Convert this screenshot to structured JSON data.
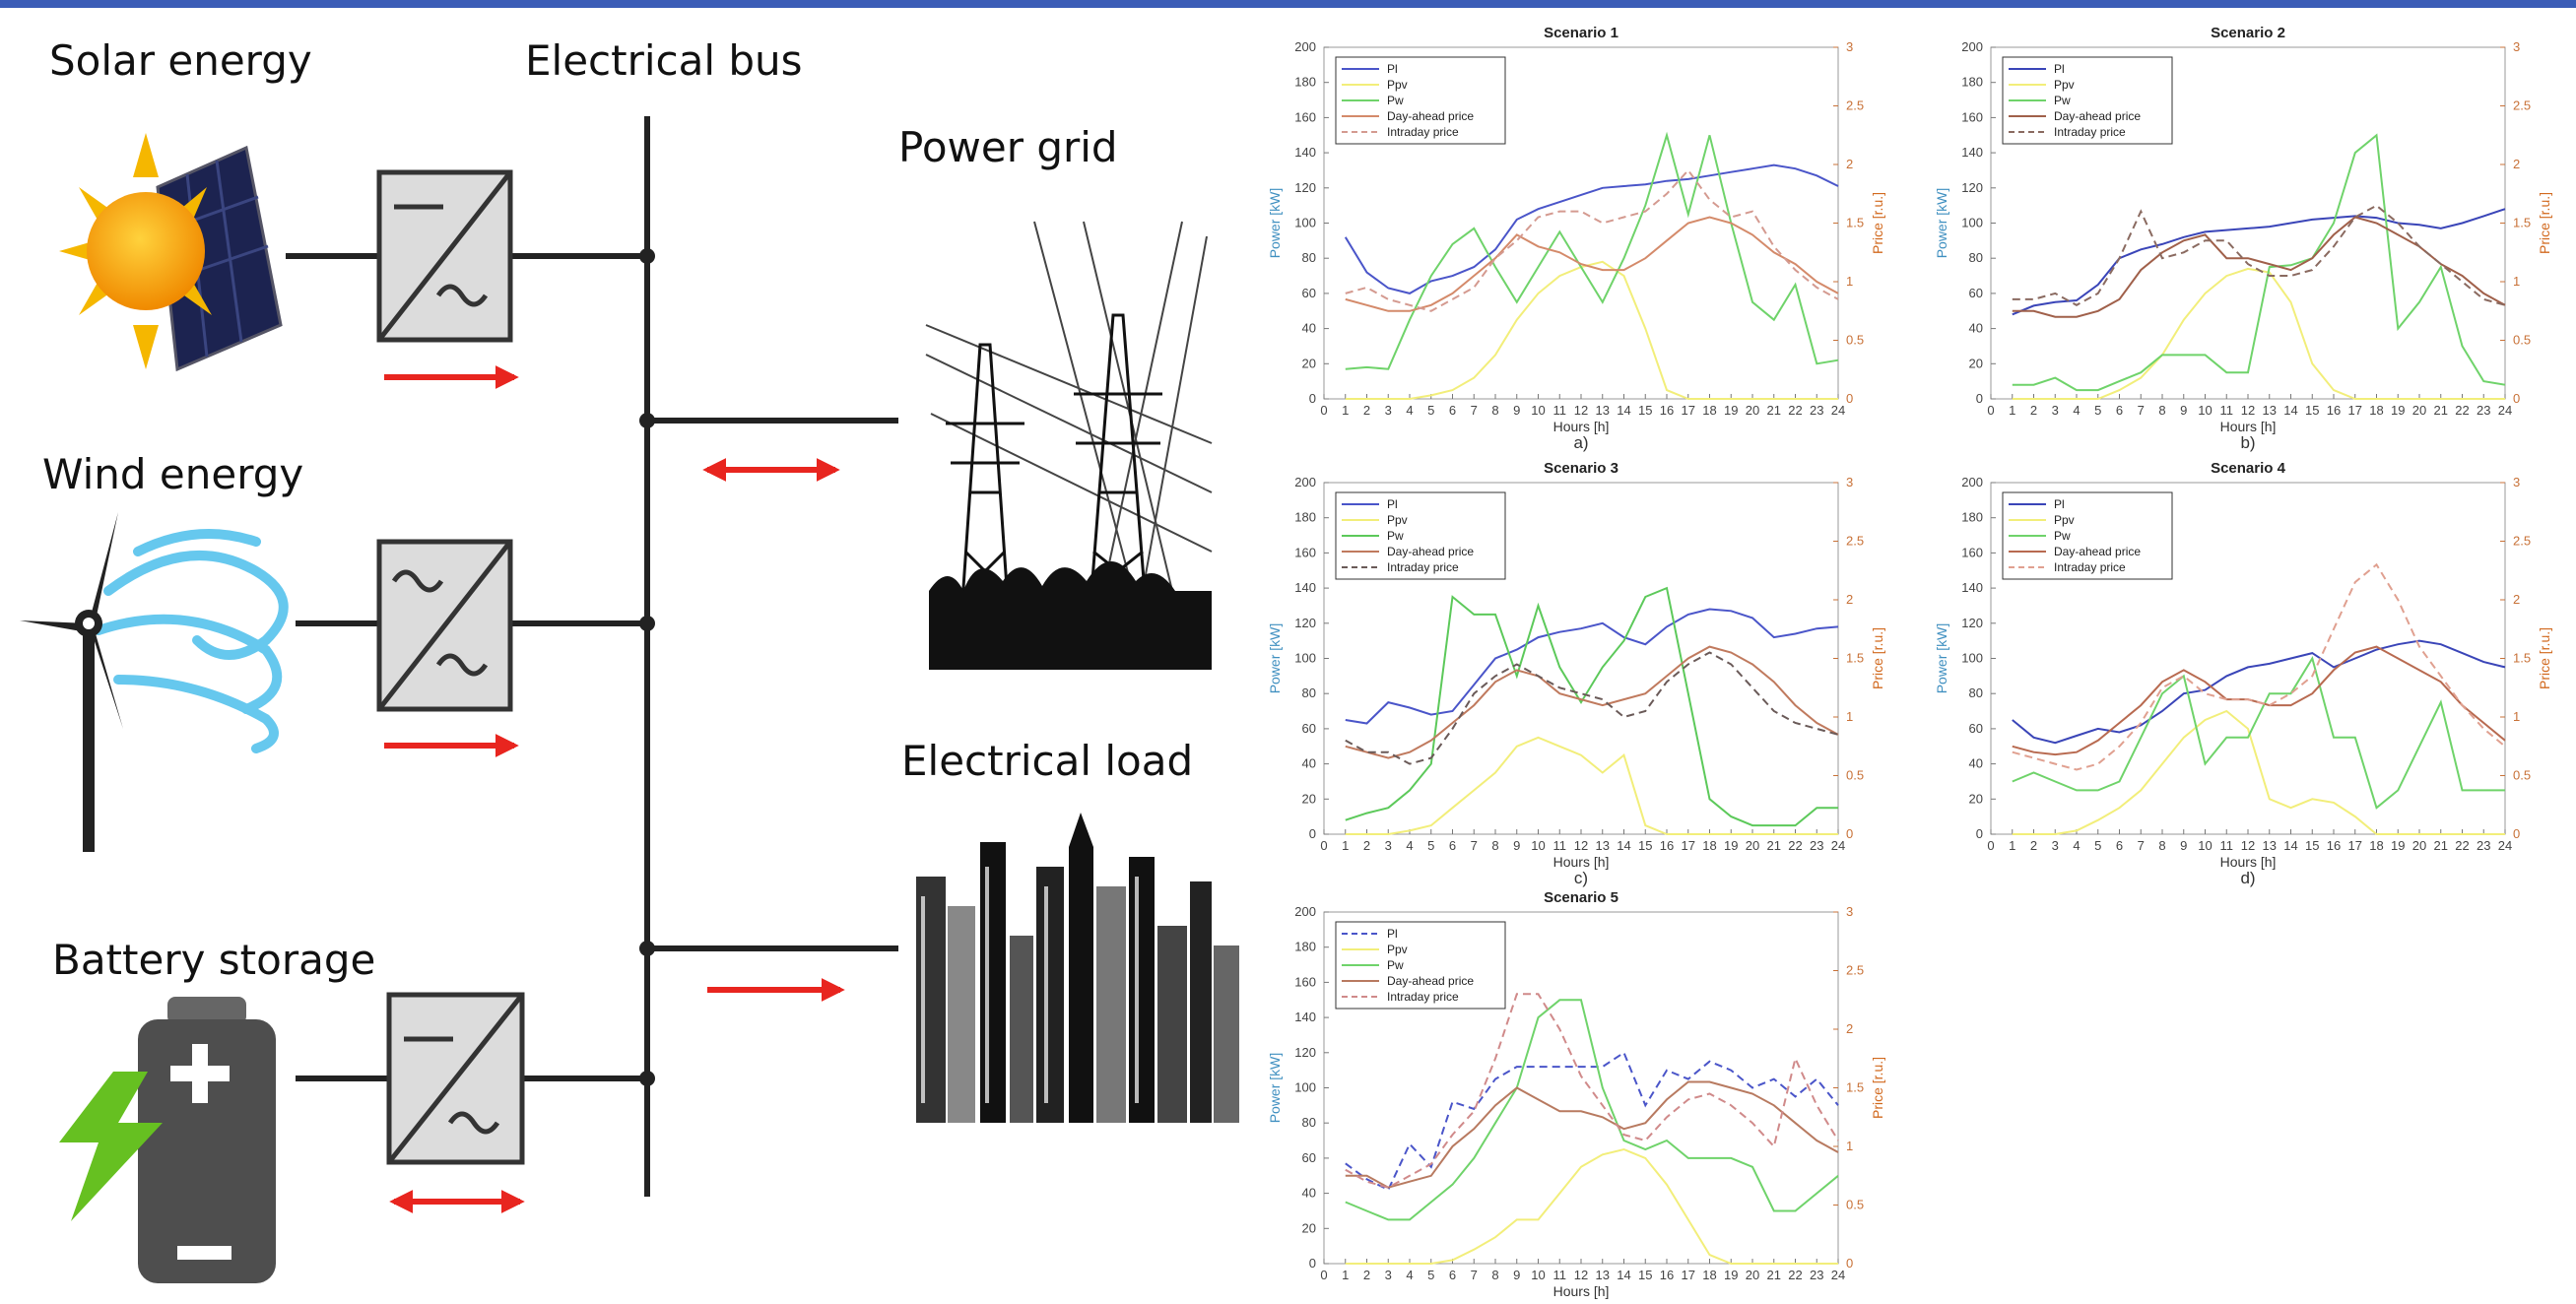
{
  "diagram": {
    "solar": "Solar energy",
    "bus": "Electrical bus",
    "grid": "Power grid",
    "wind": "Wind energy",
    "load": "Electrical load",
    "battery": "Battery storage"
  },
  "chart_data": [
    {
      "type": "line",
      "title": "Scenario 1",
      "caption": "a)",
      "xlabel": "Hours [h]",
      "ylabel": "Power [kW]",
      "y2label": "Price [r.u.]",
      "x": [
        1,
        2,
        3,
        4,
        5,
        6,
        7,
        8,
        9,
        10,
        11,
        12,
        13,
        14,
        15,
        16,
        17,
        18,
        19,
        20,
        21,
        22,
        23,
        24
      ],
      "xlim": [
        0,
        24
      ],
      "xticks": [
        0,
        1,
        2,
        3,
        4,
        5,
        6,
        7,
        8,
        9,
        10,
        11,
        12,
        13,
        14,
        15,
        16,
        17,
        18,
        19,
        20,
        21,
        22,
        23,
        24
      ],
      "ylim": [
        0,
        200
      ],
      "yticks": [
        0,
        20,
        40,
        60,
        80,
        100,
        120,
        140,
        160,
        180,
        200
      ],
      "y2lim": [
        0,
        3
      ],
      "y2ticks": [
        0,
        0.5,
        1,
        1.5,
        2,
        2.5,
        3
      ],
      "series": [
        {
          "name": "Pl",
          "color": "#4a55c9",
          "values": [
            92,
            72,
            63,
            60,
            67,
            70,
            75,
            85,
            102,
            108,
            112,
            116,
            120,
            121,
            122,
            124,
            125,
            127,
            129,
            131,
            133,
            131,
            127,
            121
          ]
        },
        {
          "name": "Ppv",
          "color": "#f2ee7a",
          "values": [
            0,
            0,
            0,
            0,
            2,
            5,
            12,
            25,
            45,
            60,
            70,
            75,
            78,
            70,
            40,
            5,
            0,
            0,
            0,
            0,
            0,
            0,
            0,
            0
          ]
        },
        {
          "name": "Pw",
          "color": "#6fd36a",
          "values": [
            17,
            18,
            17,
            45,
            70,
            88,
            97,
            75,
            55,
            75,
            95,
            75,
            55,
            80,
            110,
            150,
            105,
            150,
            100,
            55,
            45,
            65,
            20,
            22
          ]
        },
        {
          "name": "Day-ahead price",
          "color": "#d48a6a",
          "axis": "y2",
          "values": [
            0.85,
            0.8,
            0.75,
            0.75,
            0.8,
            0.9,
            1.05,
            1.2,
            1.4,
            1.3,
            1.25,
            1.15,
            1.1,
            1.1,
            1.2,
            1.35,
            1.5,
            1.55,
            1.5,
            1.4,
            1.25,
            1.15,
            1.0,
            0.9
          ]
        },
        {
          "name": "Intraday price",
          "color": "#d49a90",
          "axis": "y2",
          "dashed": true,
          "values": [
            0.9,
            0.95,
            0.85,
            0.8,
            0.75,
            0.85,
            0.95,
            1.2,
            1.35,
            1.55,
            1.6,
            1.6,
            1.5,
            1.55,
            1.6,
            1.75,
            1.95,
            1.7,
            1.55,
            1.6,
            1.3,
            1.1,
            0.95,
            0.85
          ]
        }
      ]
    },
    {
      "type": "line",
      "title": "Scenario 2",
      "caption": "b)",
      "xlabel": "Hours [h]",
      "ylabel": "Power [kW]",
      "y2label": "Price [r.u.]",
      "x": [
        1,
        2,
        3,
        4,
        5,
        6,
        7,
        8,
        9,
        10,
        11,
        12,
        13,
        14,
        15,
        16,
        17,
        18,
        19,
        20,
        21,
        22,
        23,
        24
      ],
      "xlim": [
        0,
        24
      ],
      "xticks": [
        0,
        1,
        2,
        3,
        4,
        5,
        6,
        7,
        8,
        9,
        10,
        11,
        12,
        13,
        14,
        15,
        16,
        17,
        18,
        19,
        20,
        21,
        22,
        23,
        24
      ],
      "ylim": [
        0,
        200
      ],
      "yticks": [
        0,
        20,
        40,
        60,
        80,
        100,
        120,
        140,
        160,
        180,
        200
      ],
      "y2lim": [
        0,
        3
      ],
      "y2ticks": [
        0,
        0.5,
        1,
        1.5,
        2,
        2.5,
        3
      ],
      "series": [
        {
          "name": "Pl",
          "color": "#3a45b8",
          "values": [
            48,
            53,
            55,
            56,
            65,
            80,
            85,
            88,
            92,
            95,
            96,
            97,
            98,
            100,
            102,
            103,
            104,
            103,
            100,
            99,
            97,
            100,
            104,
            108
          ]
        },
        {
          "name": "Ppv",
          "color": "#f2ee7a",
          "values": [
            0,
            0,
            0,
            0,
            0,
            5,
            12,
            25,
            45,
            60,
            70,
            74,
            72,
            55,
            20,
            5,
            0,
            0,
            0,
            0,
            0,
            0,
            0,
            0
          ]
        },
        {
          "name": "Pw",
          "color": "#6fd36a",
          "values": [
            8,
            8,
            12,
            5,
            5,
            10,
            15,
            25,
            25,
            25,
            15,
            15,
            75,
            76,
            80,
            100,
            140,
            150,
            40,
            55,
            75,
            30,
            10,
            8
          ]
        },
        {
          "name": "Day-ahead price",
          "color": "#a0604a",
          "axis": "y2",
          "values": [
            0.75,
            0.75,
            0.7,
            0.7,
            0.75,
            0.85,
            1.1,
            1.25,
            1.35,
            1.4,
            1.2,
            1.2,
            1.15,
            1.1,
            1.2,
            1.4,
            1.55,
            1.5,
            1.4,
            1.3,
            1.15,
            1.05,
            0.9,
            0.8
          ]
        },
        {
          "name": "Intraday price",
          "color": "#8a6a60",
          "axis": "y2",
          "dashed": true,
          "values": [
            0.85,
            0.85,
            0.9,
            0.8,
            0.9,
            1.2,
            1.6,
            1.2,
            1.25,
            1.35,
            1.35,
            1.15,
            1.05,
            1.05,
            1.1,
            1.3,
            1.55,
            1.65,
            1.5,
            1.3,
            1.15,
            1.0,
            0.85,
            0.8
          ]
        }
      ]
    },
    {
      "type": "line",
      "title": "Scenario 3",
      "caption": "c)",
      "xlabel": "Hours [h]",
      "ylabel": "Power [kW]",
      "y2label": "Price [r.u.]",
      "x": [
        1,
        2,
        3,
        4,
        5,
        6,
        7,
        8,
        9,
        10,
        11,
        12,
        13,
        14,
        15,
        16,
        17,
        18,
        19,
        20,
        21,
        22,
        23,
        24
      ],
      "xlim": [
        0,
        24
      ],
      "xticks": [
        0,
        1,
        2,
        3,
        4,
        5,
        6,
        7,
        8,
        9,
        10,
        11,
        12,
        13,
        14,
        15,
        16,
        17,
        18,
        19,
        20,
        21,
        22,
        23,
        24
      ],
      "ylim": [
        0,
        200
      ],
      "yticks": [
        0,
        20,
        40,
        60,
        80,
        100,
        120,
        140,
        160,
        180,
        200
      ],
      "y2lim": [
        0,
        3
      ],
      "y2ticks": [
        0,
        0.5,
        1,
        1.5,
        2,
        2.5,
        3
      ],
      "series": [
        {
          "name": "Pl",
          "color": "#4a55c9",
          "values": [
            65,
            63,
            75,
            72,
            68,
            70,
            85,
            100,
            105,
            112,
            115,
            117,
            120,
            112,
            108,
            118,
            125,
            128,
            127,
            123,
            112,
            114,
            117,
            118
          ]
        },
        {
          "name": "Ppv",
          "color": "#f2ee7a",
          "values": [
            0,
            0,
            0,
            2,
            5,
            15,
            25,
            35,
            50,
            55,
            50,
            45,
            35,
            45,
            5,
            0,
            0,
            0,
            0,
            0,
            0,
            0,
            0,
            0
          ]
        },
        {
          "name": "Pw",
          "color": "#5cc95a",
          "values": [
            8,
            12,
            15,
            25,
            40,
            135,
            125,
            125,
            90,
            130,
            95,
            75,
            95,
            110,
            135,
            140,
            80,
            20,
            10,
            5,
            5,
            5,
            15,
            15
          ]
        },
        {
          "name": "Day-ahead price",
          "color": "#c07a5e",
          "axis": "y2",
          "values": [
            0.75,
            0.7,
            0.65,
            0.7,
            0.8,
            0.95,
            1.1,
            1.3,
            1.4,
            1.35,
            1.2,
            1.15,
            1.1,
            1.15,
            1.2,
            1.35,
            1.5,
            1.6,
            1.55,
            1.45,
            1.3,
            1.1,
            0.95,
            0.85
          ]
        },
        {
          "name": "Intraday price",
          "color": "#6a5a58",
          "axis": "y2",
          "dashed": true,
          "values": [
            0.8,
            0.7,
            0.7,
            0.6,
            0.65,
            0.9,
            1.2,
            1.35,
            1.45,
            1.35,
            1.25,
            1.2,
            1.15,
            1.0,
            1.05,
            1.3,
            1.45,
            1.55,
            1.45,
            1.25,
            1.05,
            0.95,
            0.9,
            0.85
          ]
        }
      ]
    },
    {
      "type": "line",
      "title": "Scenario 4",
      "caption": "d)",
      "xlabel": "Hours [h]",
      "ylabel": "Power [kW]",
      "y2label": "Price [r.u.]",
      "x": [
        1,
        2,
        3,
        4,
        5,
        6,
        7,
        8,
        9,
        10,
        11,
        12,
        13,
        14,
        15,
        16,
        17,
        18,
        19,
        20,
        21,
        22,
        23,
        24
      ],
      "xlim": [
        0,
        24
      ],
      "xticks": [
        0,
        1,
        2,
        3,
        4,
        5,
        6,
        7,
        8,
        9,
        10,
        11,
        12,
        13,
        14,
        15,
        16,
        17,
        18,
        19,
        20,
        21,
        22,
        23,
        24
      ],
      "ylim": [
        0,
        200
      ],
      "yticks": [
        0,
        20,
        40,
        60,
        80,
        100,
        120,
        140,
        160,
        180,
        200
      ],
      "y2lim": [
        0,
        3
      ],
      "y2ticks": [
        0,
        0.5,
        1,
        1.5,
        2,
        2.5,
        3
      ],
      "series": [
        {
          "name": "Pl",
          "color": "#3a45b8",
          "values": [
            65,
            55,
            52,
            56,
            60,
            58,
            62,
            70,
            80,
            82,
            90,
            95,
            97,
            100,
            103,
            95,
            100,
            105,
            108,
            110,
            108,
            103,
            98,
            95
          ]
        },
        {
          "name": "Ppv",
          "color": "#f2ee7a",
          "values": [
            0,
            0,
            0,
            2,
            8,
            15,
            25,
            40,
            55,
            65,
            70,
            60,
            20,
            15,
            20,
            18,
            10,
            0,
            0,
            0,
            0,
            0,
            0,
            0
          ]
        },
        {
          "name": "Pw",
          "color": "#6fd36a",
          "values": [
            30,
            35,
            30,
            25,
            25,
            30,
            55,
            80,
            90,
            40,
            55,
            55,
            80,
            80,
            100,
            55,
            55,
            15,
            25,
            50,
            75,
            25,
            25,
            25
          ]
        },
        {
          "name": "Day-ahead price",
          "color": "#b86a50",
          "axis": "y2",
          "values": [
            0.75,
            0.7,
            0.68,
            0.7,
            0.8,
            0.95,
            1.1,
            1.3,
            1.4,
            1.3,
            1.15,
            1.15,
            1.1,
            1.1,
            1.2,
            1.4,
            1.55,
            1.6,
            1.5,
            1.4,
            1.3,
            1.1,
            0.95,
            0.8
          ]
        },
        {
          "name": "Intraday price",
          "color": "#e0a090",
          "axis": "y2",
          "dashed": true,
          "values": [
            0.7,
            0.65,
            0.6,
            0.55,
            0.6,
            0.75,
            0.95,
            1.25,
            1.35,
            1.2,
            1.15,
            1.15,
            1.1,
            1.2,
            1.35,
            1.75,
            2.15,
            2.3,
            2.0,
            1.6,
            1.35,
            1.1,
            0.9,
            0.75
          ]
        }
      ]
    },
    {
      "type": "line",
      "title": "Scenario 5",
      "xlabel": "Hours [h]",
      "ylabel": "Power [kW]",
      "y2label": "Price [r.u.]",
      "x": [
        1,
        2,
        3,
        4,
        5,
        6,
        7,
        8,
        9,
        10,
        11,
        12,
        13,
        14,
        15,
        16,
        17,
        18,
        19,
        20,
        21,
        22,
        23,
        24
      ],
      "xlim": [
        0,
        24
      ],
      "xticks": [
        0,
        1,
        2,
        3,
        4,
        5,
        6,
        7,
        8,
        9,
        10,
        11,
        12,
        13,
        14,
        15,
        16,
        17,
        18,
        19,
        20,
        21,
        22,
        23,
        24
      ],
      "ylim": [
        0,
        200
      ],
      "yticks": [
        0,
        20,
        40,
        60,
        80,
        100,
        120,
        140,
        160,
        180,
        200
      ],
      "y2lim": [
        0,
        3
      ],
      "y2ticks": [
        0,
        0.5,
        1,
        1.5,
        2,
        2.5,
        3
      ],
      "series": [
        {
          "name": "Pl",
          "color": "#4a55c9",
          "dashed": true,
          "values": [
            57,
            48,
            42,
            68,
            55,
            92,
            88,
            105,
            112,
            112,
            112,
            112,
            112,
            120,
            90,
            110,
            105,
            115,
            110,
            100,
            105,
            95,
            105,
            90
          ]
        },
        {
          "name": "Ppv",
          "color": "#f2ee7a",
          "values": [
            0,
            0,
            0,
            0,
            0,
            2,
            8,
            15,
            25,
            25,
            40,
            55,
            62,
            65,
            60,
            45,
            25,
            5,
            0,
            0,
            0,
            0,
            0,
            0
          ]
        },
        {
          "name": "Pw",
          "color": "#6fd36a",
          "values": [
            35,
            30,
            25,
            25,
            35,
            45,
            60,
            80,
            100,
            140,
            150,
            150,
            100,
            70,
            65,
            70,
            60,
            60,
            60,
            55,
            30,
            30,
            40,
            50
          ]
        },
        {
          "name": "Day-ahead price",
          "color": "#b87a60",
          "axis": "y2",
          "values": [
            0.75,
            0.75,
            0.65,
            0.7,
            0.75,
            1.0,
            1.15,
            1.35,
            1.5,
            1.4,
            1.3,
            1.3,
            1.25,
            1.15,
            1.2,
            1.4,
            1.55,
            1.55,
            1.5,
            1.45,
            1.35,
            1.2,
            1.05,
            0.95
          ]
        },
        {
          "name": "Intraday price",
          "color": "#d08a8a",
          "axis": "y2",
          "dashed": true,
          "values": [
            0.8,
            0.7,
            0.65,
            0.75,
            0.85,
            1.1,
            1.3,
            1.75,
            2.3,
            2.3,
            2.0,
            1.6,
            1.35,
            1.1,
            1.05,
            1.25,
            1.4,
            1.45,
            1.35,
            1.2,
            1.0,
            1.75,
            1.35,
            1.05
          ]
        }
      ]
    }
  ]
}
